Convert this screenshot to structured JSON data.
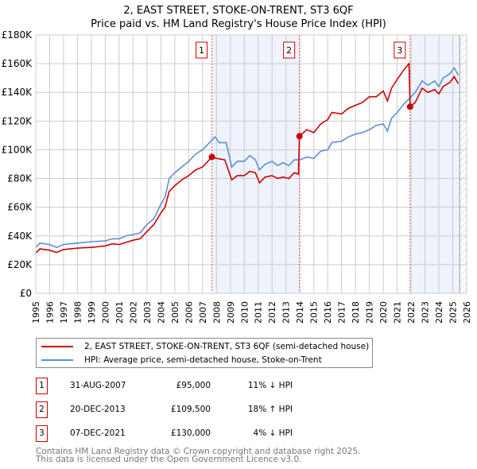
{
  "chart_data": {
    "type": "line",
    "title": "2, EAST STREET, STOKE-ON-TRENT, ST3 6QF",
    "subtitle": "Price paid vs. HM Land Registry's House Price Index (HPI)",
    "xlim": [
      1995,
      2026
    ],
    "ylim": [
      0,
      180000
    ],
    "x_ticks": [
      "1995",
      "1996",
      "1997",
      "1998",
      "1999",
      "2000",
      "2001",
      "2002",
      "2003",
      "2004",
      "2005",
      "2006",
      "2007",
      "2008",
      "2009",
      "2010",
      "2011",
      "2012",
      "2013",
      "2014",
      "2015",
      "2016",
      "2017",
      "2018",
      "2019",
      "2020",
      "2021",
      "2022",
      "2023",
      "2024",
      "2025",
      "2026"
    ],
    "y_ticks": [
      {
        "v": 0,
        "label": "£0"
      },
      {
        "v": 20000,
        "label": "£20K"
      },
      {
        "v": 40000,
        "label": "£40K"
      },
      {
        "v": 60000,
        "label": "£60K"
      },
      {
        "v": 80000,
        "label": "£80K"
      },
      {
        "v": 100000,
        "label": "£100K"
      },
      {
        "v": 120000,
        "label": "£120K"
      },
      {
        "v": 140000,
        "label": "£140K"
      },
      {
        "v": 160000,
        "label": "£160K"
      },
      {
        "v": 180000,
        "label": "£180K"
      }
    ],
    "grid": true,
    "shaded_ranges": [
      [
        2007.67,
        2013.97
      ],
      [
        2021.93,
        2025.5
      ]
    ],
    "hatched_from": 2025.5,
    "series": [
      {
        "name": "2, EAST STREET, STOKE-ON-TRENT, ST3 6QF (semi-detached house)",
        "color": "#cc0000",
        "x": [
          1995,
          1995.3,
          1996,
          1996.5,
          1997,
          1998,
          1999,
          2000,
          2000.5,
          2001,
          2001.5,
          2002,
          2002.5,
          2003,
          2003.5,
          2004,
          2004.3,
          2004.6,
          2005,
          2005.5,
          2006,
          2006.5,
          2007,
          2007.67,
          2008,
          2008.6,
          2009.1,
          2009.5,
          2010,
          2010.4,
          2010.8,
          2011.1,
          2011.5,
          2012,
          2012.4,
          2012.8,
          2013.2,
          2013.6,
          2013.9,
          2013.97,
          2014.5,
          2015,
          2015.5,
          2016,
          2016.3,
          2017,
          2017.5,
          2018,
          2018.5,
          2019,
          2019.5,
          2020,
          2020.3,
          2020.6,
          2021,
          2021.5,
          2021.85,
          2021.93,
          2022.3,
          2022.8,
          2023.2,
          2023.7,
          2024,
          2024.3,
          2024.8,
          2025.1,
          2025.4
        ],
        "y": [
          28000,
          31000,
          30000,
          28500,
          30500,
          31500,
          32000,
          33000,
          34500,
          34000,
          35500,
          37000,
          38000,
          43000,
          48000,
          56000,
          60000,
          71000,
          75000,
          79000,
          82000,
          86000,
          88000,
          95000,
          94000,
          93000,
          79000,
          82000,
          82000,
          85000,
          84000,
          77000,
          81000,
          82000,
          80000,
          81000,
          80000,
          84000,
          83000,
          109500,
          114000,
          112000,
          118000,
          121000,
          126000,
          125000,
          129000,
          131000,
          133000,
          137000,
          137000,
          141000,
          134000,
          143000,
          149000,
          156000,
          160000,
          130000,
          133000,
          143000,
          140000,
          142000,
          139000,
          144000,
          147000,
          151000,
          146000
        ]
      },
      {
        "name": "HPI: Average price, semi-detached house, Stoke-on-Trent",
        "color": "#5b8fd6",
        "x": [
          1995,
          1995.3,
          1996,
          1996.5,
          1997,
          1998,
          1999,
          2000,
          2000.5,
          2001,
          2001.5,
          2002,
          2002.5,
          2003,
          2003.5,
          2004,
          2004.3,
          2004.6,
          2005,
          2005.5,
          2006,
          2006.5,
          2007,
          2007.5,
          2007.9,
          2008.2,
          2008.7,
          2009.1,
          2009.5,
          2010,
          2010.4,
          2010.8,
          2011.1,
          2011.5,
          2012,
          2012.4,
          2012.8,
          2013.2,
          2013.6,
          2014,
          2014.5,
          2015,
          2015.5,
          2016,
          2016.3,
          2017,
          2017.5,
          2018,
          2018.5,
          2019,
          2019.5,
          2020,
          2020.3,
          2020.6,
          2021,
          2021.5,
          2021.9,
          2022.3,
          2022.8,
          2023.2,
          2023.7,
          2024,
          2024.3,
          2024.8,
          2025.1,
          2025.4
        ],
        "y": [
          32000,
          35000,
          34000,
          32000,
          34000,
          35000,
          36000,
          36500,
          38000,
          38000,
          40000,
          41000,
          42000,
          48000,
          52000,
          62000,
          67000,
          80000,
          84000,
          88000,
          92000,
          97000,
          100000,
          105000,
          109000,
          105000,
          105000,
          88000,
          92000,
          92000,
          96000,
          93000,
          86000,
          90000,
          92000,
          89000,
          91000,
          89000,
          93000,
          93000,
          95000,
          94000,
          99000,
          100000,
          105000,
          106000,
          109000,
          111000,
          112000,
          114000,
          117000,
          118000,
          113000,
          122000,
          126000,
          132000,
          136000,
          140000,
          148000,
          145000,
          148000,
          144000,
          150000,
          153000,
          157000,
          152000
        ]
      }
    ],
    "sales": [
      {
        "n": "1",
        "x": 2007.67,
        "y": 95000,
        "date": "31-AUG-2007",
        "price": "£95,000",
        "hpi": "11% ↓ HPI"
      },
      {
        "n": "2",
        "x": 2013.97,
        "y": 109500,
        "date": "20-DEC-2013",
        "price": "£109,500",
        "hpi": "18% ↑ HPI"
      },
      {
        "n": "3",
        "x": 2021.93,
        "y": 130000,
        "date": "07-DEC-2021",
        "price": "£130,000",
        "hpi": "4% ↓ HPI"
      }
    ]
  },
  "footer": {
    "line1": "Contains HM Land Registry data © Crown copyright and database right 2025.",
    "line2": "This data is licensed under the Open Government Licence v3.0."
  }
}
